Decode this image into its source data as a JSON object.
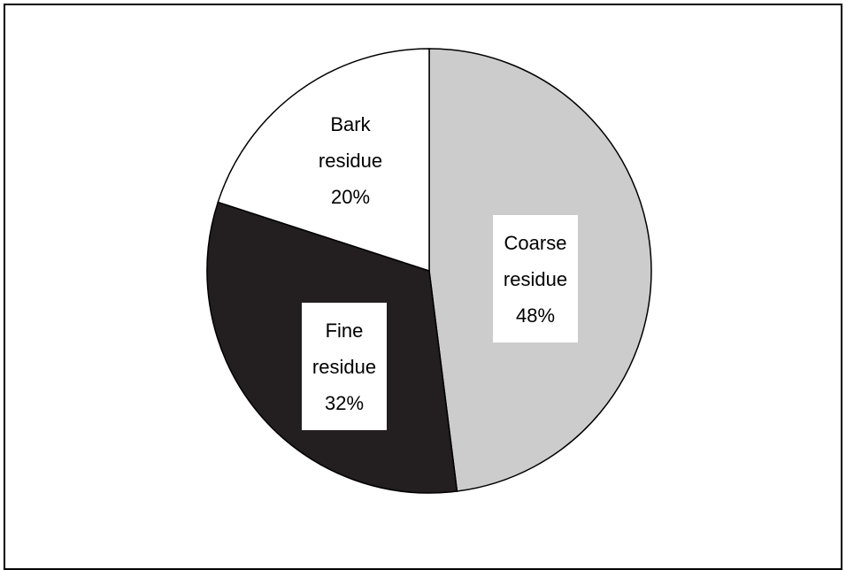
{
  "chart_data": {
    "type": "pie",
    "title": "",
    "slices": [
      {
        "name": "Coarse residue",
        "label_lines": [
          "Coarse",
          "residue",
          "48%"
        ],
        "value": 48,
        "color": "#cccccc"
      },
      {
        "name": "Fine residue",
        "label_lines": [
          "Fine",
          "residue",
          "32%"
        ],
        "value": 32,
        "color": "#231f20"
      },
      {
        "name": "Bark residue",
        "label_lines": [
          "Bark",
          "residue",
          "20%"
        ],
        "value": 20,
        "color": "#ffffff"
      }
    ],
    "start": "top",
    "direction": "clockwise",
    "legend": "none",
    "labels": "inside"
  }
}
